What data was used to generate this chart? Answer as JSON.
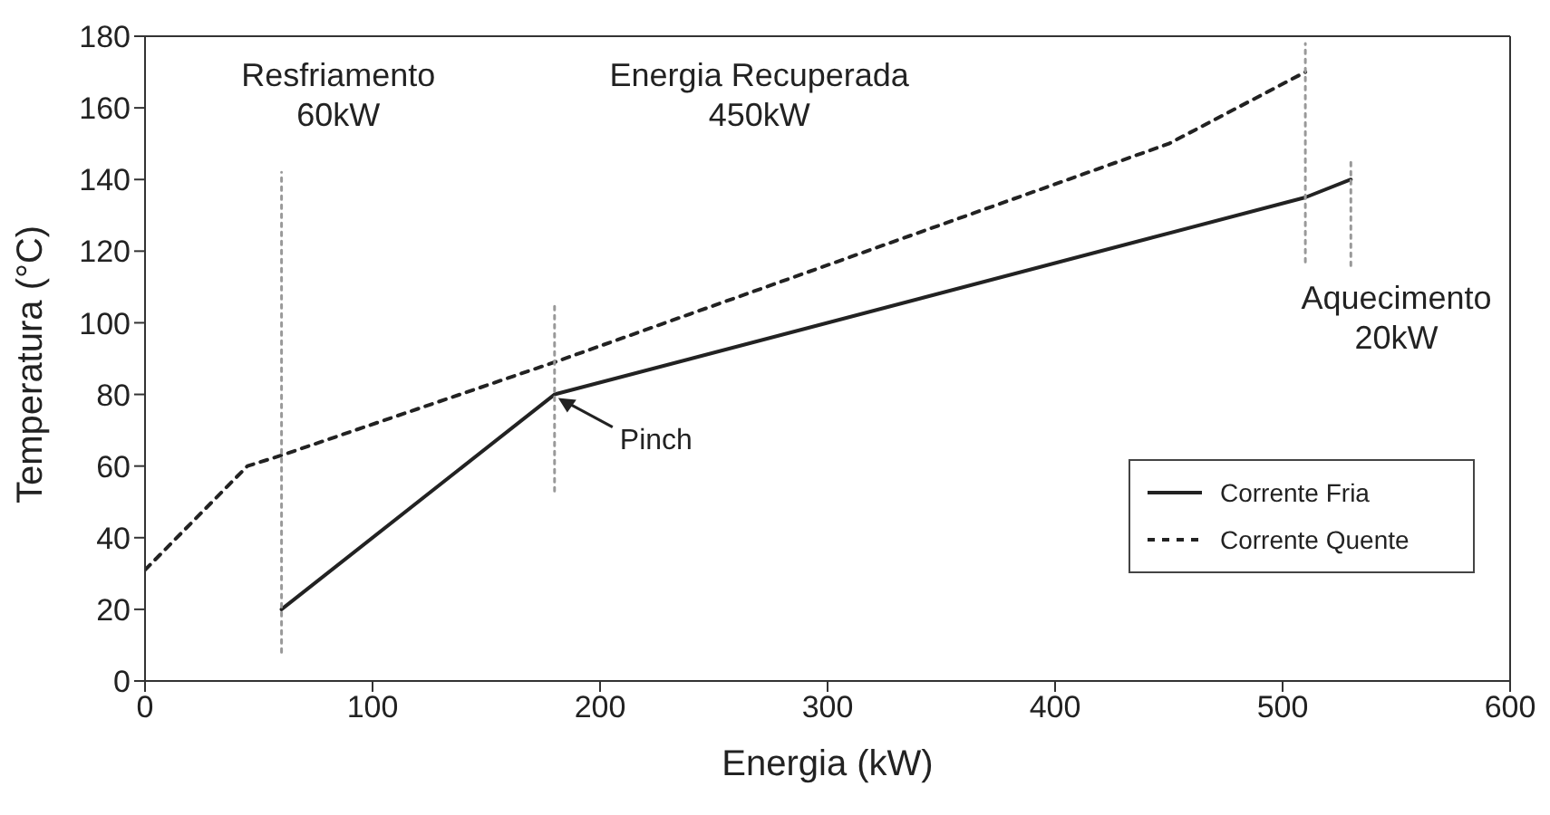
{
  "chart_data": {
    "type": "line",
    "xlabel": "Energia (kW)",
    "ylabel": "Temperatura (°C)",
    "xlim": [
      0,
      600
    ],
    "xticks": [
      0,
      100,
      200,
      300,
      400,
      500,
      600
    ],
    "ylim": [
      0,
      180
    ],
    "yticks": [
      0,
      20,
      40,
      60,
      80,
      100,
      120,
      140,
      160,
      180
    ],
    "grid": false,
    "legend": "bottom right",
    "marker": "none",
    "series": [
      {
        "name": "Corrente Fria",
        "color": "#222222",
        "line_style": "solid",
        "x": [
          60,
          180,
          510,
          530
        ],
        "values": [
          20,
          80,
          135,
          140
        ]
      },
      {
        "name": "Corrente Quente",
        "color": "#222222",
        "line_style": "dashed",
        "x": [
          0,
          45,
          60,
          180,
          450,
          510
        ],
        "values": [
          31,
          60,
          63,
          89,
          150,
          170
        ]
      },
      {
        "color": "#999999",
        "line_style": "dotted",
        "x": [
          60,
          60
        ],
        "values": [
          8,
          142
        ]
      },
      {
        "color": "#999999",
        "line_style": "dotted",
        "x": [
          180,
          180
        ],
        "values": [
          53,
          105
        ]
      },
      {
        "color": "#999999",
        "line_style": "dotted",
        "x": [
          510,
          510
        ],
        "values": [
          117,
          178
        ]
      },
      {
        "color": "#999999",
        "line_style": "dotted",
        "x": [
          530,
          530
        ],
        "values": [
          116,
          145
        ]
      }
    ],
    "annotations": [
      "Resfriamento\n60kW",
      "Energia Recuperada\n450kW",
      "Aquecimento\n20kW",
      {
        "text": "Pinch",
        "x": 180,
        "y": 80
      }
    ]
  }
}
